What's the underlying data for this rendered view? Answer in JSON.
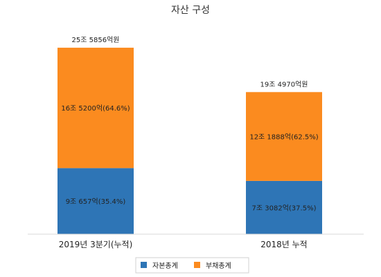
{
  "chart_data": {
    "type": "bar",
    "stacked": true,
    "title": "자산 구성",
    "categories": [
      "2019년 3분기(누적)",
      "2018년 누적"
    ],
    "totals": [
      "25조 5856억원",
      "19조 4970억원"
    ],
    "series": [
      {
        "name": "자본총계",
        "color": "#2e75b6",
        "values": [
          9.0657,
          7.3082
        ],
        "labels": [
          "9조 657억(35.4%)",
          "7조 3082억(37.5%)"
        ]
      },
      {
        "name": "부채총계",
        "color": "#fb8b1f",
        "values": [
          16.52,
          12.1888
        ],
        "labels": [
          "16조 5200억(64.6%)",
          "12조 1888억(62.5%)"
        ]
      }
    ],
    "legend_position": "bottom",
    "grid": false
  }
}
